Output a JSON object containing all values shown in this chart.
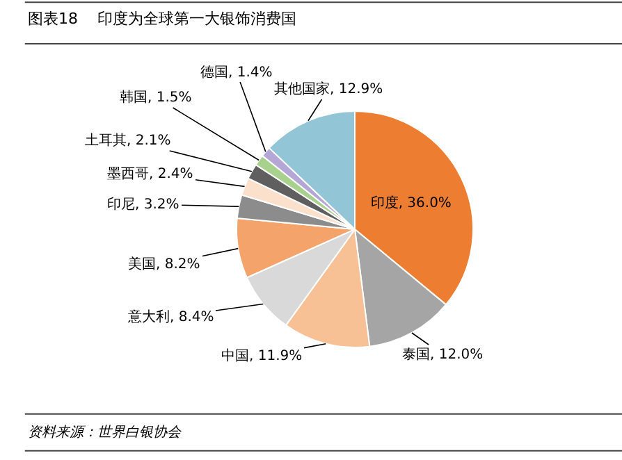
{
  "chart_data": {
    "type": "pie",
    "title": "图表18    印度为全球第一大银饰消费国",
    "categories": [
      "印度",
      "泰国",
      "中国",
      "意大利",
      "美国",
      "印尼",
      "墨西哥",
      "土耳其",
      "韩国",
      "德国",
      "其他国家"
    ],
    "values": [
      36.0,
      12.0,
      11.9,
      8.4,
      8.2,
      3.2,
      2.4,
      2.1,
      1.5,
      1.4,
      12.9
    ],
    "value_labels": [
      "36.0%",
      "12.0%",
      "11.9%",
      "8.4%",
      "8.2%",
      "3.2%",
      "2.4%",
      "2.1%",
      "1.5%",
      "1.4%",
      "12.9%"
    ],
    "colors": [
      "#ed7d31",
      "#a5a5a5",
      "#f8c195",
      "#d9d9d9",
      "#f4a46a",
      "#8c8c8c",
      "#fbe0cc",
      "#5f5f5f",
      "#a9d18e",
      "#b4a7d6",
      "#92c5d6"
    ],
    "annotations": [
      "资料来源：世界白银协会"
    ],
    "legend": false
  }
}
